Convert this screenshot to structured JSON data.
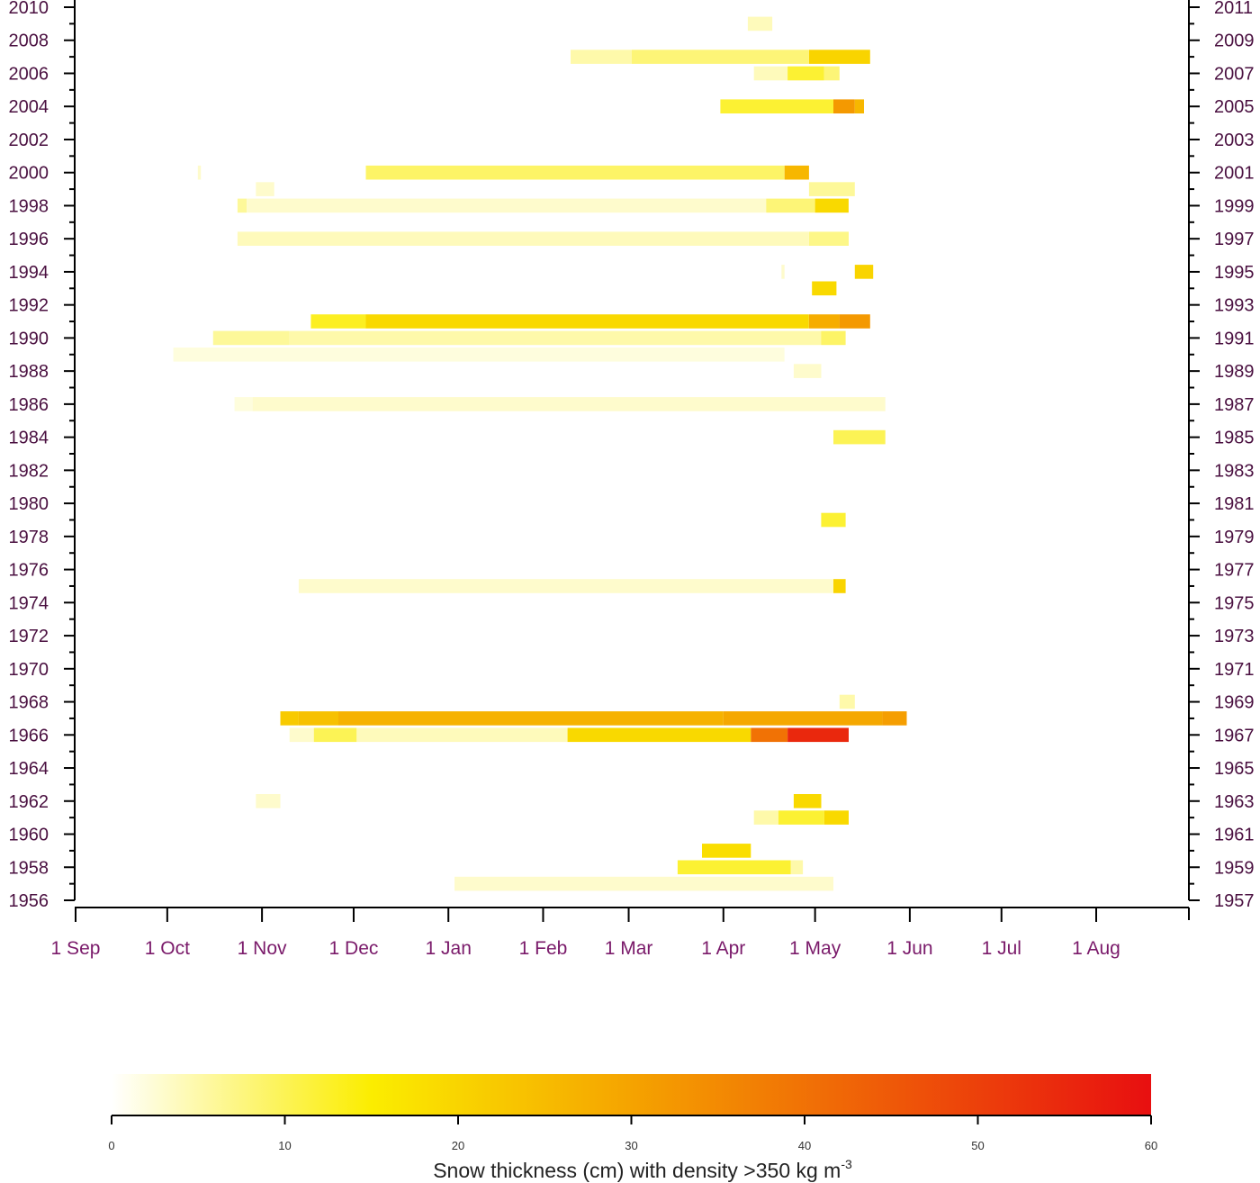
{
  "chart_data": {
    "type": "heatmap",
    "title": "",
    "y_axis": {
      "left_ticks": [
        "1956",
        "1958",
        "1960",
        "1962",
        "1964",
        "1966",
        "1968",
        "1970",
        "1972",
        "1974",
        "1976",
        "1978",
        "1980",
        "1982",
        "1984",
        "1986",
        "1988",
        "1990",
        "1992",
        "1994",
        "1996",
        "1998",
        "2000",
        "2002",
        "2004",
        "2006",
        "2008",
        "2010"
      ],
      "right_ticks": [
        "1957",
        "1959",
        "1961",
        "1963",
        "1965",
        "1967",
        "1969",
        "1971",
        "1973",
        "1975",
        "1977",
        "1979",
        "1981",
        "1983",
        "1985",
        "1987",
        "1989",
        "1991",
        "1993",
        "1995",
        "1997",
        "1999",
        "2001",
        "2003",
        "2005",
        "2007",
        "2009",
        "2011"
      ],
      "range": [
        1956,
        2010
      ]
    },
    "x_axis": {
      "ticks": [
        "1 Sep",
        "1 Oct",
        "1 Nov",
        "1 Dec",
        "1 Jan",
        "1 Feb",
        "1 Mar",
        "1 Apr",
        "1 May",
        "1 Jun",
        "1 Jul",
        "1 Aug"
      ],
      "range_days": [
        0,
        359
      ]
    },
    "colorbar": {
      "title": "Snow thickness (cm) with density >350 kg m",
      "title_superscript": "-3",
      "ticks": [
        "0",
        "10",
        "20",
        "30",
        "40",
        "50",
        "60"
      ],
      "range": [
        0,
        60
      ],
      "colors": [
        "#ffffff",
        "#fbed00",
        "#f5a300",
        "#e80f10"
      ]
    },
    "cells": [
      {
        "year": 2009,
        "start": 220,
        "end": 228,
        "value": 4
      },
      {
        "year": 2007,
        "start": 162,
        "end": 182,
        "value": 5
      },
      {
        "year": 2007,
        "start": 182,
        "end": 240,
        "value": 8
      },
      {
        "year": 2007,
        "start": 240,
        "end": 260,
        "value": 20
      },
      {
        "year": 2006,
        "start": 222,
        "end": 233,
        "value": 4
      },
      {
        "year": 2006,
        "start": 233,
        "end": 245,
        "value": 12
      },
      {
        "year": 2006,
        "start": 245,
        "end": 250,
        "value": 8
      },
      {
        "year": 2004,
        "start": 211,
        "end": 248,
        "value": 12
      },
      {
        "year": 2004,
        "start": 248,
        "end": 255,
        "value": 32
      },
      {
        "year": 2004,
        "start": 255,
        "end": 258,
        "value": 26
      },
      {
        "year": 2000,
        "start": 95,
        "end": 232,
        "value": 9
      },
      {
        "year": 2000,
        "start": 232,
        "end": 240,
        "value": 26
      },
      {
        "year": 1999,
        "start": 240,
        "end": 255,
        "value": 6
      },
      {
        "year": 1998,
        "start": 53,
        "end": 56,
        "value": 6
      },
      {
        "year": 1998,
        "start": 56,
        "end": 226,
        "value": 3
      },
      {
        "year": 1998,
        "start": 226,
        "end": 242,
        "value": 8
      },
      {
        "year": 1998,
        "start": 242,
        "end": 253,
        "value": 19
      },
      {
        "year": 1996,
        "start": 53,
        "end": 240,
        "value": 4
      },
      {
        "year": 1996,
        "start": 240,
        "end": 253,
        "value": 7
      },
      {
        "year": 1994,
        "start": 255,
        "end": 261,
        "value": 20
      },
      {
        "year": 1993,
        "start": 241,
        "end": 249,
        "value": 19
      },
      {
        "year": 1991,
        "start": 77,
        "end": 95,
        "value": 13
      },
      {
        "year": 1991,
        "start": 95,
        "end": 240,
        "value": 19
      },
      {
        "year": 1991,
        "start": 240,
        "end": 250,
        "value": 28
      },
      {
        "year": 1991,
        "start": 250,
        "end": 260,
        "value": 32
      },
      {
        "year": 1990,
        "start": 45,
        "end": 70,
        "value": 6
      },
      {
        "year": 1990,
        "start": 70,
        "end": 244,
        "value": 5
      },
      {
        "year": 1990,
        "start": 244,
        "end": 252,
        "value": 9
      },
      {
        "year": 1989,
        "start": 32,
        "end": 232,
        "value": 2
      },
      {
        "year": 1988,
        "start": 235,
        "end": 244,
        "value": 3
      },
      {
        "year": 1986,
        "start": 52,
        "end": 58,
        "value": 2
      },
      {
        "year": 1986,
        "start": 58,
        "end": 265,
        "value": 3
      },
      {
        "year": 1984,
        "start": 248,
        "end": 265,
        "value": 10
      },
      {
        "year": 1979,
        "start": 244,
        "end": 252,
        "value": 12
      },
      {
        "year": 1975,
        "start": 73,
        "end": 248,
        "value": 3
      },
      {
        "year": 1975,
        "start": 248,
        "end": 252,
        "value": 20
      },
      {
        "year": 1968,
        "start": 250,
        "end": 255,
        "value": 5
      },
      {
        "year": 1967,
        "start": 67,
        "end": 73,
        "value": 22
      },
      {
        "year": 1967,
        "start": 73,
        "end": 86,
        "value": 24
      },
      {
        "year": 1967,
        "start": 86,
        "end": 212,
        "value": 27
      },
      {
        "year": 1967,
        "start": 212,
        "end": 264,
        "value": 29
      },
      {
        "year": 1967,
        "start": 264,
        "end": 272,
        "value": 31
      },
      {
        "year": 1966,
        "start": 70,
        "end": 78,
        "value": 3
      },
      {
        "year": 1966,
        "start": 78,
        "end": 92,
        "value": 10
      },
      {
        "year": 1966,
        "start": 92,
        "end": 161,
        "value": 4
      },
      {
        "year": 1966,
        "start": 161,
        "end": 221,
        "value": 19
      },
      {
        "year": 1966,
        "start": 221,
        "end": 233,
        "value": 40
      },
      {
        "year": 1966,
        "start": 233,
        "end": 253,
        "value": 55
      },
      {
        "year": 1962,
        "start": 235,
        "end": 244,
        "value": 19
      },
      {
        "year": 1961,
        "start": 222,
        "end": 230,
        "value": 5
      },
      {
        "year": 1961,
        "start": 230,
        "end": 245,
        "value": 12
      },
      {
        "year": 1961,
        "start": 245,
        "end": 253,
        "value": 19
      },
      {
        "year": 1959,
        "start": 205,
        "end": 221,
        "value": 18
      },
      {
        "year": 1958,
        "start": 197,
        "end": 234,
        "value": 12
      },
      {
        "year": 1958,
        "start": 234,
        "end": 238,
        "value": 5
      },
      {
        "year": 1957,
        "start": 124,
        "end": 248,
        "value": 3
      },
      {
        "year": 1962,
        "start": 59,
        "end": 67,
        "value": 3
      },
      {
        "year": 1999,
        "start": 59,
        "end": 65,
        "value": 3
      },
      {
        "year": 2000,
        "start": 40,
        "end": 41,
        "value": 3
      },
      {
        "year": 1994,
        "start": 231,
        "end": 232,
        "value": 3
      }
    ]
  }
}
